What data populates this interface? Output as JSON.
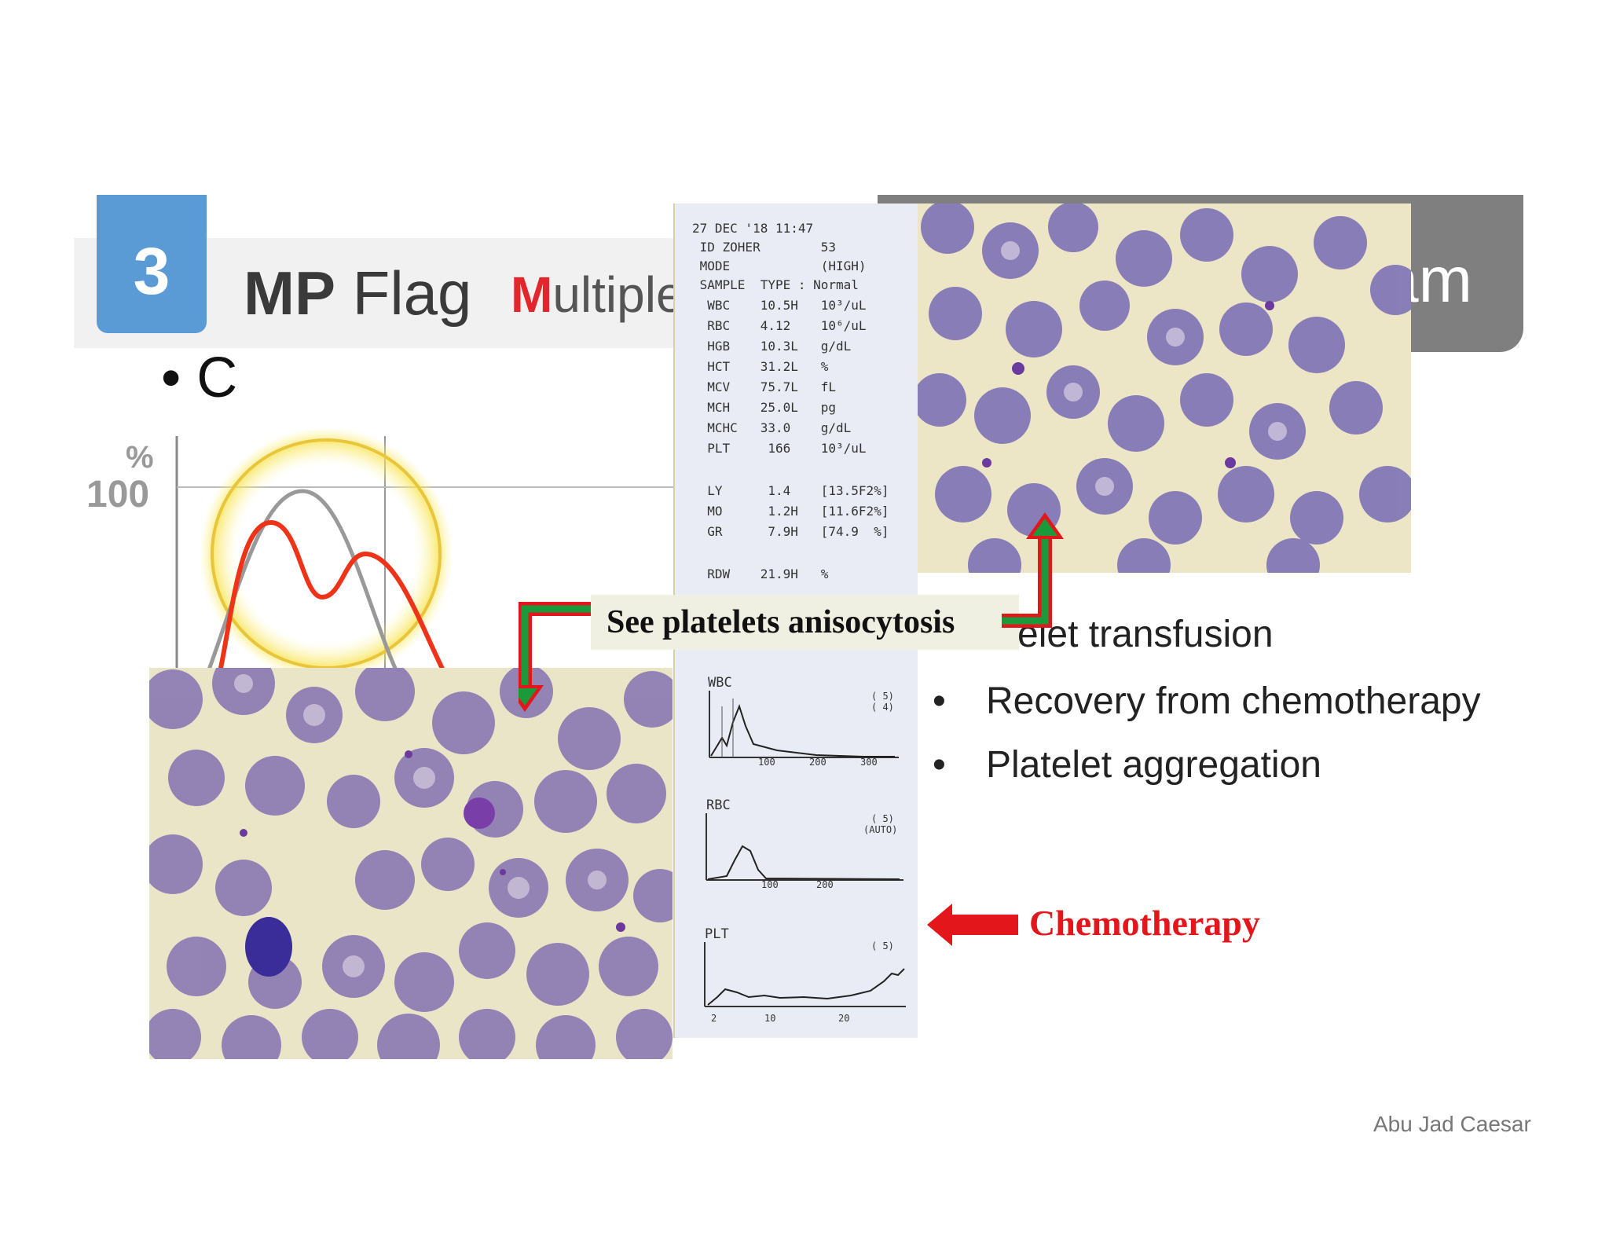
{
  "header": {
    "badge_number": "3",
    "title_bold": "MP",
    "title_rest": " Flag",
    "subtitle_first": "M",
    "subtitle_rest": "ultiple",
    "tab_fragment": "am"
  },
  "bullet_c": "C",
  "histogram": {
    "y_unit": "%",
    "y_value": "100"
  },
  "bullets": [
    "atelet transfusion",
    "Recovery from chemotherapy",
    "Platelet aggregation"
  ],
  "printout": {
    "lines": [
      "27 DEC '18 11:47",
      " ID ZOHER        53",
      " MODE            (HIGH)",
      " SAMPLE  TYPE : Normal",
      "  WBC    10.5H   10³/uL",
      "  RBC    4.12    10⁶/uL",
      "  HGB    10.3L   g/dL",
      "  HCT    31.2L   %",
      "  MCV    75.7L   fL",
      "  MCH    25.0L   pg",
      "  MCHC   33.0    g/dL",
      "  PLT     166    10³/uL",
      "",
      "  LY      1.4    [13.5F2%]",
      "  MO      1.2H   [11.6F2%]",
      "  GR      7.9H   [74.9  %]",
      "",
      "  RDW    21.9H   %"
    ],
    "graphs": [
      {
        "label": "WBC",
        "flag1": "( 5)",
        "flag2": "( 4)",
        "ticks": [
          "100",
          "200",
          "300"
        ]
      },
      {
        "label": "RBC",
        "flag1": "( 5)",
        "flag2": "(AUTO)",
        "ticks": [
          "100",
          "200"
        ]
      },
      {
        "label": "PLT",
        "flag1": "( 5)",
        "flag2": "",
        "ticks": [
          "2",
          "10",
          "20"
        ]
      }
    ]
  },
  "callout_text": "See platelets anisocytosis",
  "chemo_label": "Chemotherapy",
  "author": "Abu Jad Caesar",
  "colors": {
    "badge_blue": "#5b9bd5",
    "accent_red": "#e3161b",
    "arrow_green": "#1a9a3a",
    "tab_grey": "#7f7f7f"
  }
}
